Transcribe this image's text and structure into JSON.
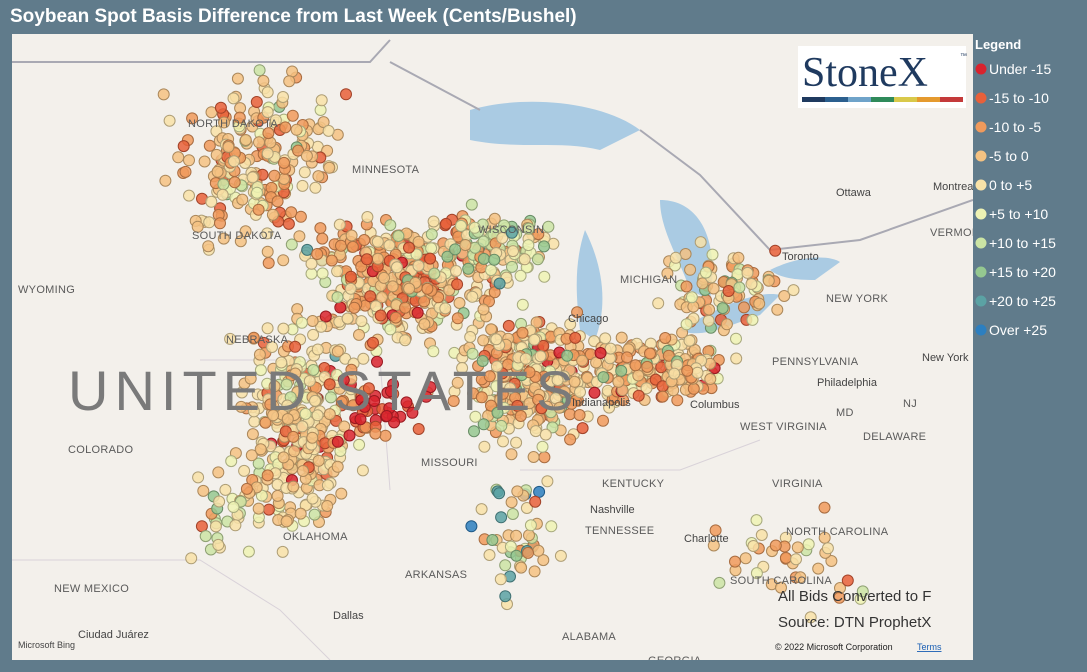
{
  "header": {
    "title": "Soybean Spot Basis Difference from Last Week (Cents/Bushel)"
  },
  "legend": {
    "title": "Legend",
    "items": [
      {
        "label": "Under -15",
        "color": "#d9232e"
      },
      {
        "label": "-15 to -10",
        "color": "#e8603a"
      },
      {
        "label": "-10 to -5",
        "color": "#f09a5c"
      },
      {
        "label": "-5 to 0",
        "color": "#f4c282"
      },
      {
        "label": "0 to +5",
        "color": "#f8e2a8"
      },
      {
        "label": "+5 to +10",
        "color": "#eef3b4"
      },
      {
        "label": "+10 to +15",
        "color": "#cbe4a4"
      },
      {
        "label": "+15 to +20",
        "color": "#95c890"
      },
      {
        "label": "+20 to +25",
        "color": "#5ba2a4"
      },
      {
        "label": "Over +25",
        "color": "#2c7fc0"
      }
    ]
  },
  "logo": {
    "text": "StoneX",
    "tm": "™"
  },
  "places": [
    "NORTH DAKOTA",
    "MINNESOTA",
    "SOUTH DAKOTA",
    "WYOMING",
    "NEBRASKA",
    "UNITED STATES",
    "COLORADO",
    "MISSOURI",
    "KENTUCKY",
    "TENNESSEE",
    "OKLAHOMA",
    "ARKANSAS",
    "NEW MEXICO",
    "ALABAMA",
    "GEORGIA",
    "VIRGINIA",
    "WEST VIRGINIA",
    "NORTH CAROLINA",
    "SOUTH CAROLINA",
    "PENNSYLVANIA",
    "NEW YORK",
    "WISCONSIN",
    "MICHIGAN",
    "Ottawa",
    "Montreal",
    "Toronto",
    "Chicago",
    "Columbus",
    "Philadelphia",
    "New York",
    "Nashville",
    "Dallas",
    "Charlotte",
    "MD",
    "DELAWARE",
    "NJ",
    "VERMONT",
    "Ciudad Juárez",
    "Indianapolis"
  ],
  "notes": {
    "line1": "All Bids Converted to F",
    "line2": "Source: DTN ProphetX",
    "copyright": "© 2022 Microsoft Corporation",
    "terms": "Terms",
    "bing": "Microsoft Bing"
  }
}
